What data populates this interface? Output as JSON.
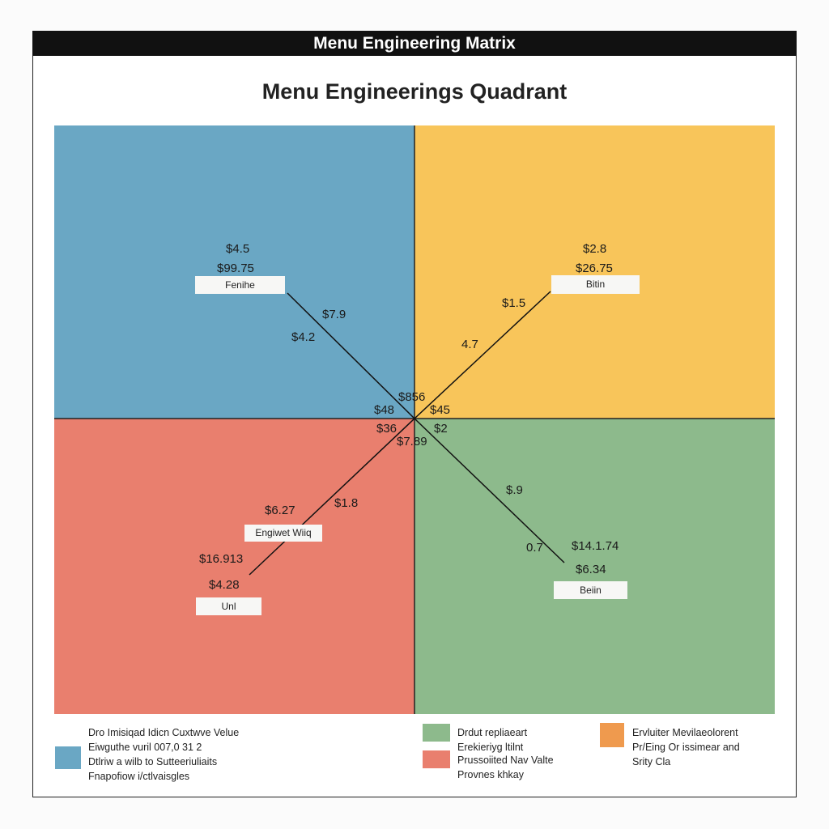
{
  "header": {
    "title": "Menu Engineering Matrix"
  },
  "subtitle": "Menu Engineerings Quadrant",
  "colors": {
    "top_left": "#6aa7c4",
    "top_right": "#f8c55a",
    "bottom_left": "#e97f6e",
    "bottom_right": "#8dba8c",
    "legend_orange": "#ef9a4e"
  },
  "quadrants": {
    "top_left": {
      "box": "Fenihe",
      "values": [
        "$4.5",
        "$99.75",
        "$7.9",
        "$4.2"
      ]
    },
    "top_right": {
      "box": "Bitin",
      "values": [
        "$2.8",
        "$26.75",
        "$1.5",
        "4.7"
      ]
    },
    "bottom_left": {
      "box_mid": "Engiwet Wiiq",
      "box": "Unl",
      "values": [
        "$6.27",
        "$1.8",
        "$16.913",
        "$4.28"
      ]
    },
    "bottom_right": {
      "box": "Beiin",
      "values": [
        "$.9",
        "0.7",
        "$14.1.74",
        "$6.34"
      ]
    },
    "center": [
      "$856",
      "$48",
      "$45",
      "$36",
      "$2",
      "$7.89"
    ]
  },
  "legend": {
    "blue": [
      "Dro Imisiqad Idicn Cuxtwve Velue",
      "Eiwguthe vuril 007,0 31 2",
      "Dtlriw a wilb to Sutteeriuliaits",
      "Fnapofiow i/ctlvaisgles"
    ],
    "green": [
      "Drdut repliaeart",
      "Erekieriyg ltilnt"
    ],
    "red": [
      "Prussoiited Nav Valte",
      "Provnes khkay"
    ],
    "orange": [
      "Ervluiter Mevilaeolorent",
      "Pr/Eing Or issimear and",
      "Srity Cla"
    ]
  }
}
